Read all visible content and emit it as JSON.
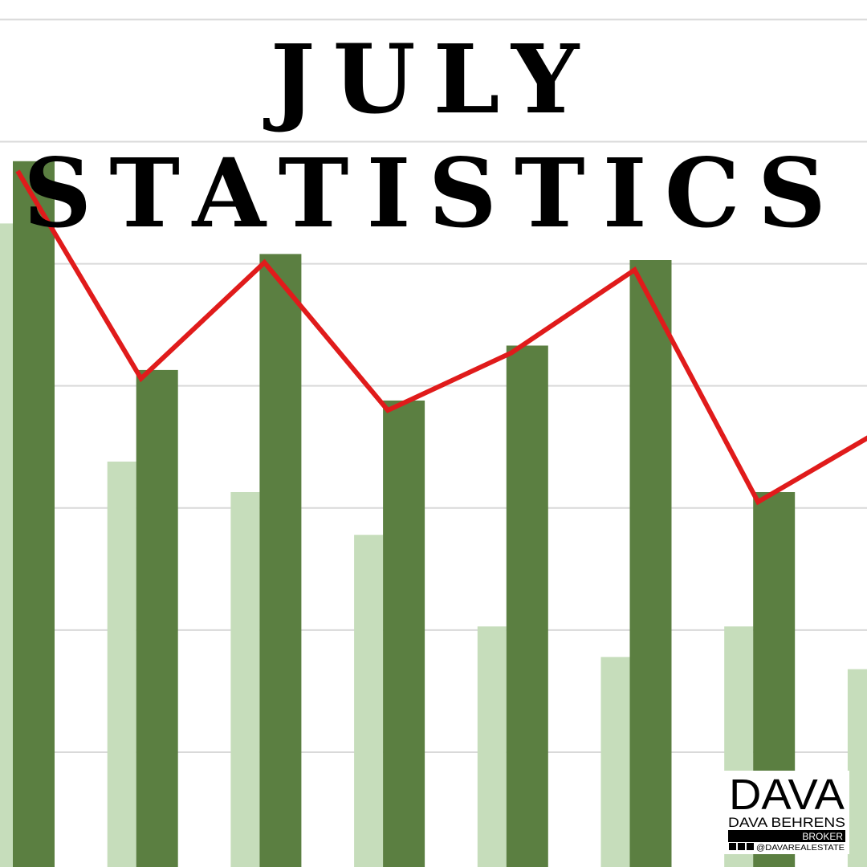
{
  "chart_data": {
    "type": "bar-line",
    "title": [
      "JULY",
      "STATISTICS"
    ],
    "categories": [
      null,
      null,
      null,
      null,
      null,
      null,
      null,
      null
    ],
    "series": [
      {
        "type": "bar",
        "color": "#c6ddbb",
        "values": [
          5.33,
          3.38,
          3.13,
          2.78,
          2.03,
          1.78,
          2.03,
          1.68
        ]
      },
      {
        "type": "bar",
        "color": "#5b7f41",
        "values": [
          5.84,
          4.13,
          5.08,
          3.88,
          4.33,
          5.03,
          3.13,
          null
        ]
      },
      {
        "type": "line",
        "color": "#e01b1b",
        "values": [
          5.76,
          4.06,
          5.01,
          3.8,
          4.27,
          4.95,
          3.05,
          3.64
        ]
      }
    ],
    "ylim": [
      0.06,
      7.16
    ],
    "yticks": [
      1,
      2,
      3,
      4,
      5,
      6,
      7
    ],
    "grid": true
  },
  "logo": {
    "mark": "DAVA",
    "name": "DAVA BEHRENS",
    "role": "BROKER",
    "handle": "@DAVAREALESTATE"
  }
}
